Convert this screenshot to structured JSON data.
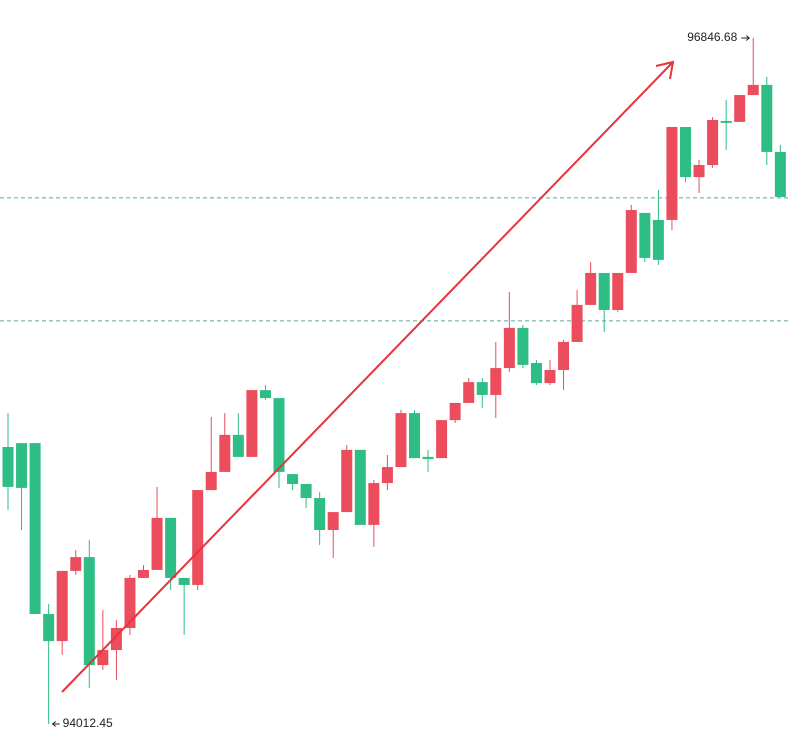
{
  "chart_data": {
    "type": "candlestick",
    "up_color": "#eb4d5c",
    "down_color": "#2ebd85",
    "ylim": [
      93888.5,
      97003.73
    ],
    "hlines": [
      96186,
      95678
    ],
    "hline_color": "#5aa69c",
    "open": [
      95157,
      95173,
      95173,
      94467,
      94355,
      94645,
      94702,
      94256,
      94318,
      94409,
      94616,
      94649,
      94864,
      94616,
      94587,
      94979,
      95054,
      95207,
      95116,
      95392,
      95359,
      95045,
      95004,
      94946,
      94814,
      94888,
      95145,
      94835,
      95008,
      95074,
      95297,
      95116,
      95111,
      95268,
      95339,
      95425,
      95372,
      95483,
      95649,
      95504,
      95421,
      95475,
      95591,
      95744,
      95876,
      95723,
      95876,
      96124,
      96095,
      96095,
      96479,
      96272,
      96322,
      96504,
      96500,
      96611,
      96653,
      96376
    ],
    "high": [
      95297,
      95173,
      95173,
      94508,
      94645,
      94731,
      94773,
      94483,
      94442,
      94628,
      94669,
      94992,
      94864,
      94616,
      94979,
      95281,
      95297,
      95297,
      95392,
      95413,
      95359,
      95045,
      95004,
      94971,
      94888,
      95165,
      95145,
      95021,
      95124,
      95310,
      95310,
      95145,
      95268,
      95339,
      95442,
      95442,
      95591,
      95797,
      95661,
      95516,
      95516,
      95599,
      95806,
      95921,
      95876,
      95876,
      96157,
      96124,
      96219,
      96479,
      96479,
      96343,
      96520,
      96591,
      96611,
      96846.68,
      96686,
      96405
    ],
    "low": [
      94897,
      94814,
      94467,
      94012.45,
      94298,
      94628,
      94161,
      94236,
      94194,
      94380,
      94616,
      94649,
      94566,
      94380,
      94566,
      94979,
      95054,
      95116,
      95116,
      95351,
      94988,
      94979,
      94905,
      94752,
      94698,
      94888,
      94835,
      94744,
      94979,
      95074,
      95111,
      95054,
      95111,
      95256,
      95339,
      95318,
      95277,
      95467,
      95483,
      95413,
      95413,
      95392,
      95591,
      95744,
      95632,
      95715,
      95876,
      95921,
      95909,
      96053,
      96252,
      96206,
      96310,
      96384,
      96500,
      96611,
      96322,
      96190
    ],
    "close": [
      94992,
      94988,
      94467,
      94355,
      94645,
      94702,
      94256,
      94318,
      94409,
      94616,
      94649,
      94864,
      94616,
      94587,
      94979,
      95054,
      95207,
      95116,
      95392,
      95359,
      95054,
      95004,
      94946,
      94814,
      94888,
      95145,
      94835,
      95008,
      95074,
      95297,
      95111,
      95107,
      95268,
      95339,
      95425,
      95372,
      95483,
      95649,
      95496,
      95421,
      95475,
      95591,
      95744,
      95876,
      95723,
      95876,
      96136,
      95938,
      95930,
      96479,
      96272,
      96322,
      96508,
      96496,
      96611,
      96653,
      96376,
      96190
    ],
    "max_label": "96846.68",
    "min_label": "94012.45",
    "trend_color": "#e8323c"
  }
}
